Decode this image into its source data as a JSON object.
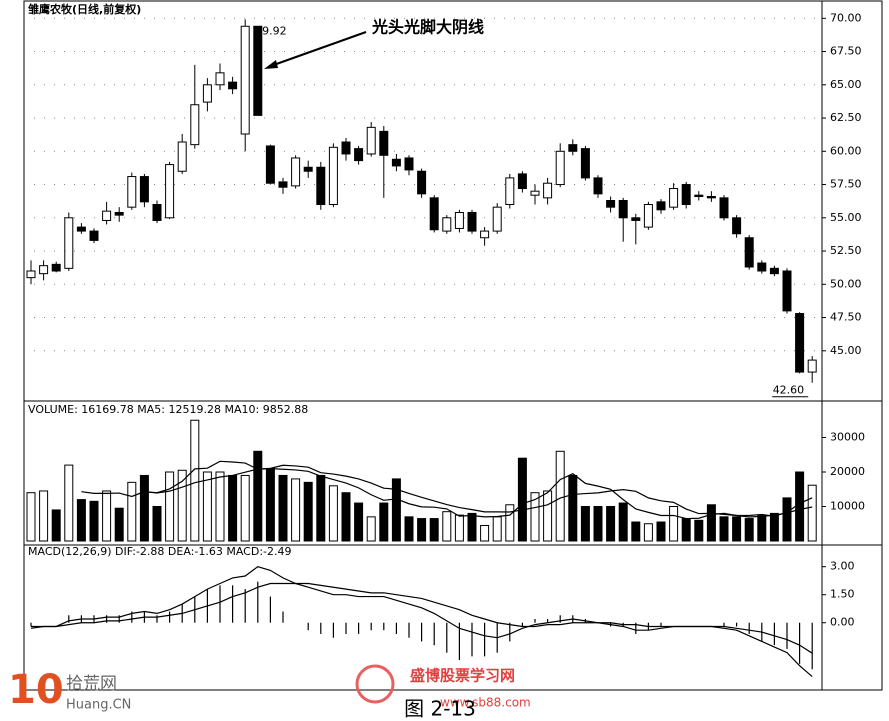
{
  "chart_data": [
    {
      "type": "candlestick",
      "title": "雏鹰农牧(日线,前复权)",
      "open": [
        50.5,
        50.8,
        51.5,
        51.2,
        54.3,
        54.0,
        54.8,
        55.4,
        55.8,
        58.1,
        56.0,
        55.0,
        58.5,
        60.5,
        63.7,
        65.0,
        65.2,
        61.3,
        69.4,
        60.4,
        57.7,
        57.4,
        58.8,
        58.8,
        56.0,
        60.7,
        60.2,
        59.8,
        61.5,
        59.4,
        59.5,
        58.5,
        56.5,
        54.0,
        54.2,
        55.4,
        53.5,
        54.0,
        56.0,
        58.3,
        56.7,
        56.5,
        57.5,
        60.5,
        60.2,
        58.0,
        56.3,
        56.3,
        55.0,
        54.3,
        56.2,
        55.8,
        57.5,
        56.7,
        56.6,
        56.5,
        55.0,
        53.5,
        51.6,
        51.2,
        51.0,
        47.8,
        43.4
      ],
      "high": [
        51.8,
        51.8,
        51.7,
        55.4,
        54.6,
        54.2,
        56.2,
        55.8,
        58.4,
        58.3,
        56.3,
        59.2,
        61.3,
        66.5,
        65.5,
        66.6,
        65.6,
        69.92,
        69.4,
        60.5,
        58.0,
        59.7,
        59.3,
        59.2,
        60.6,
        61.0,
        60.4,
        62.2,
        61.9,
        59.8,
        59.7,
        58.7,
        56.7,
        55.2,
        55.6,
        55.6,
        54.3,
        56.1,
        58.3,
        58.5,
        57.5,
        58.0,
        60.6,
        60.9,
        60.4,
        58.2,
        56.6,
        56.5,
        55.3,
        56.2,
        56.4,
        57.6,
        57.7,
        57.0,
        57.0,
        56.7,
        55.2,
        53.7,
        51.8,
        51.4,
        51.2,
        47.9,
        44.6
      ],
      "low": [
        50.0,
        50.3,
        50.9,
        51.0,
        53.8,
        53.1,
        54.5,
        54.7,
        55.6,
        55.8,
        54.6,
        54.9,
        58.3,
        60.2,
        63.0,
        64.6,
        64.3,
        60.0,
        62.7,
        57.5,
        56.8,
        57.2,
        58.0,
        55.6,
        55.8,
        59.3,
        59.0,
        59.6,
        56.5,
        58.5,
        58.2,
        56.5,
        53.9,
        53.8,
        53.9,
        53.8,
        52.9,
        53.8,
        55.7,
        56.9,
        56.0,
        56.0,
        57.3,
        59.7,
        57.8,
        56.5,
        55.4,
        53.2,
        53.0,
        54.1,
        55.3,
        55.6,
        55.7,
        56.3,
        56.2,
        54.8,
        53.5,
        51.1,
        50.8,
        50.6,
        47.8,
        43.3,
        42.6
      ],
      "close": [
        51.0,
        51.4,
        51.0,
        55.0,
        54.0,
        53.3,
        55.5,
        55.2,
        58.1,
        56.2,
        54.8,
        59.0,
        60.7,
        63.5,
        65.0,
        65.9,
        64.7,
        69.4,
        62.7,
        57.6,
        57.3,
        59.5,
        58.5,
        56.0,
        60.3,
        59.8,
        59.3,
        61.8,
        59.7,
        58.9,
        58.6,
        56.8,
        54.1,
        55.0,
        55.4,
        54.0,
        54.0,
        55.8,
        58.0,
        57.2,
        57.0,
        57.6,
        60.0,
        60.0,
        58.0,
        56.8,
        55.8,
        55.0,
        54.8,
        56.0,
        55.6,
        57.2,
        56.0,
        56.6,
        56.5,
        55.0,
        53.8,
        51.3,
        51.0,
        50.8,
        48.0,
        43.4,
        44.3
      ],
      "ylim": [
        41.3,
        71.0
      ],
      "yticks": [
        {
          "value": 70,
          "label": "70.00"
        },
        {
          "value": 67.5,
          "label": "67.50"
        },
        {
          "value": 65,
          "label": "65.00"
        },
        {
          "value": 62.5,
          "label": "62.50"
        },
        {
          "value": 60,
          "label": "60.00"
        },
        {
          "value": 57.5,
          "label": "57.50"
        },
        {
          "value": 55,
          "label": "55.00"
        },
        {
          "value": 52.5,
          "label": "52.50"
        },
        {
          "value": 50,
          "label": "50.00"
        },
        {
          "value": 47.5,
          "label": "47.50"
        },
        {
          "value": 45,
          "label": "45.00"
        }
      ],
      "grid": true,
      "up_color": "#ffffff",
      "down_color": "#000000",
      "high_label": 69.92,
      "low_label": {
        "value": 42.6,
        "label": "42.60"
      },
      "annotation": "光头光脚大阴线"
    },
    {
      "type": "bar",
      "name": "VOLUME:",
      "values": [
        14000,
        14500,
        9000,
        22000,
        12000,
        11500,
        14500,
        9500,
        17000,
        19000,
        10000,
        20000,
        20500,
        35000,
        20000,
        20000,
        19000,
        19000,
        26000,
        21000,
        19000,
        18000,
        17000,
        19000,
        16000,
        14000,
        11000,
        7000,
        11000,
        18000,
        7000,
        6500,
        6500,
        8500,
        7500,
        8000,
        4500,
        7000,
        10500,
        24000,
        14000,
        14500,
        26000,
        19000,
        10000,
        10000,
        10000,
        11000,
        5500,
        5000,
        5500,
        10000,
        6500,
        6000,
        10500,
        7000,
        7000,
        6500,
        7500,
        8000,
        12500,
        20000,
        16169.78
      ],
      "series": [
        {
          "name": "MA5:",
          "color": "#000000",
          "values": [
            null,
            null,
            null,
            null,
            14300,
            13800,
            13800,
            13900,
            12900,
            14300,
            14000,
            15100,
            17300,
            20900,
            21100,
            23100,
            22900,
            22600,
            20800,
            21000,
            20800,
            20600,
            20200,
            18800,
            17800,
            16800,
            15400,
            13400,
            11800,
            12200,
            10800,
            9900,
            9800,
            9300,
            7200,
            7400,
            7000,
            7100,
            7500,
            10800,
            12000,
            14000,
            17800,
            19500,
            16700,
            15900,
            15000,
            12000,
            9300,
            8300,
            7400,
            7400,
            6500,
            6600,
            7700,
            8000,
            7400,
            7400,
            7700,
            7200,
            8300,
            10900,
            12519.28
          ]
        },
        {
          "name": "MA10:",
          "color": "#000000",
          "values": [
            null,
            null,
            null,
            null,
            null,
            null,
            null,
            null,
            null,
            14300,
            13900,
            14450,
            15600,
            16900,
            17700,
            18550,
            19000,
            19950,
            20850,
            21050,
            21950,
            21750,
            21400,
            19800,
            19400,
            18800,
            18000,
            16800,
            15300,
            15000,
            13800,
            12650,
            11600,
            10550,
            9700,
            9100,
            8450,
            8450,
            8400,
            9000,
            9700,
            10500,
            12450,
            13500,
            13750,
            13950,
            14500,
            14900,
            14400,
            12500,
            11650,
            11200,
            9250,
            7950,
            8000,
            7700,
            7400,
            6950,
            7150,
            7450,
            8150,
            9150,
            9852.88
          ]
        }
      ],
      "ylim": [
        0,
        40000
      ],
      "yticks": [
        30000,
        20000,
        10000
      ]
    },
    {
      "type": "macd",
      "title": "MACD(12,26,9)",
      "series": [
        {
          "name": "DIF:",
          "color": "#000000",
          "values": [
            -0.3,
            -0.2,
            -0.2,
            0.1,
            0.2,
            0.2,
            0.3,
            0.3,
            0.5,
            0.6,
            0.5,
            0.7,
            1.0,
            1.4,
            1.8,
            2.1,
            2.4,
            2.5,
            3.0,
            2.8,
            2.4,
            2.1,
            1.9,
            1.7,
            1.5,
            1.5,
            1.4,
            1.4,
            1.4,
            1.2,
            1.0,
            0.8,
            0.5,
            0.1,
            -0.3,
            -0.5,
            -0.7,
            -0.8,
            -0.6,
            -0.3,
            -0.1,
            0.0,
            0.1,
            0.2,
            0.1,
            0.0,
            -0.1,
            -0.2,
            -0.4,
            -0.4,
            -0.3,
            -0.2,
            -0.2,
            -0.2,
            -0.2,
            -0.3,
            -0.4,
            -0.7,
            -1.0,
            -1.3,
            -1.6,
            -2.3,
            -2.88
          ]
        },
        {
          "name": "DEA:",
          "color": "#000000",
          "values": [
            -0.2,
            -0.2,
            -0.2,
            -0.1,
            0.0,
            0.0,
            0.1,
            0.1,
            0.2,
            0.3,
            0.3,
            0.4,
            0.5,
            0.7,
            0.9,
            1.1,
            1.4,
            1.6,
            1.9,
            2.1,
            2.1,
            2.1,
            2.1,
            2.0,
            1.9,
            1.8,
            1.7,
            1.6,
            1.6,
            1.5,
            1.4,
            1.3,
            1.1,
            0.9,
            0.7,
            0.4,
            0.2,
            0.0,
            -0.1,
            -0.2,
            -0.2,
            -0.1,
            -0.1,
            0.0,
            0.0,
            0.0,
            0.0,
            -0.1,
            -0.1,
            -0.2,
            -0.2,
            -0.2,
            -0.2,
            -0.2,
            -0.2,
            -0.2,
            -0.3,
            -0.4,
            -0.5,
            -0.7,
            -0.9,
            -1.2,
            -1.63
          ]
        }
      ],
      "histogram": {
        "name": "MACD:",
        "color": "#000000",
        "values": [
          -0.2,
          0,
          0,
          0.4,
          0.4,
          0.4,
          0.4,
          0.4,
          0.6,
          0.6,
          0.4,
          0.6,
          1.0,
          1.4,
          1.8,
          2.0,
          2.0,
          1.8,
          2.2,
          1.4,
          0.6,
          0,
          -0.4,
          -0.6,
          -0.8,
          -0.6,
          -0.6,
          -0.4,
          -0.4,
          -0.6,
          -0.8,
          -1.0,
          -1.2,
          -1.6,
          -2.0,
          -1.8,
          -1.8,
          -1.6,
          -1.0,
          -0.2,
          0.2,
          0.2,
          0.4,
          0.4,
          0.2,
          0,
          -0.2,
          -0.2,
          -0.6,
          -0.4,
          -0.2,
          0,
          0,
          0,
          0,
          -0.2,
          -0.2,
          -0.6,
          -1.0,
          -1.2,
          -1.4,
          -2.2,
          -2.49
        ]
      },
      "ylim": [
        -3.6,
        4.0
      ],
      "yticks": [
        {
          "value": 3,
          "label": "3.00"
        },
        {
          "value": 1.5,
          "label": "1.50"
        },
        {
          "value": 0,
          "label": "0.00"
        }
      ]
    }
  ],
  "caption": "图 2-13",
  "watermarks": [
    "10",
    "拾荒网",
    "Huang.CN",
    "盛博股票学习网",
    "www.sb88.com"
  ]
}
